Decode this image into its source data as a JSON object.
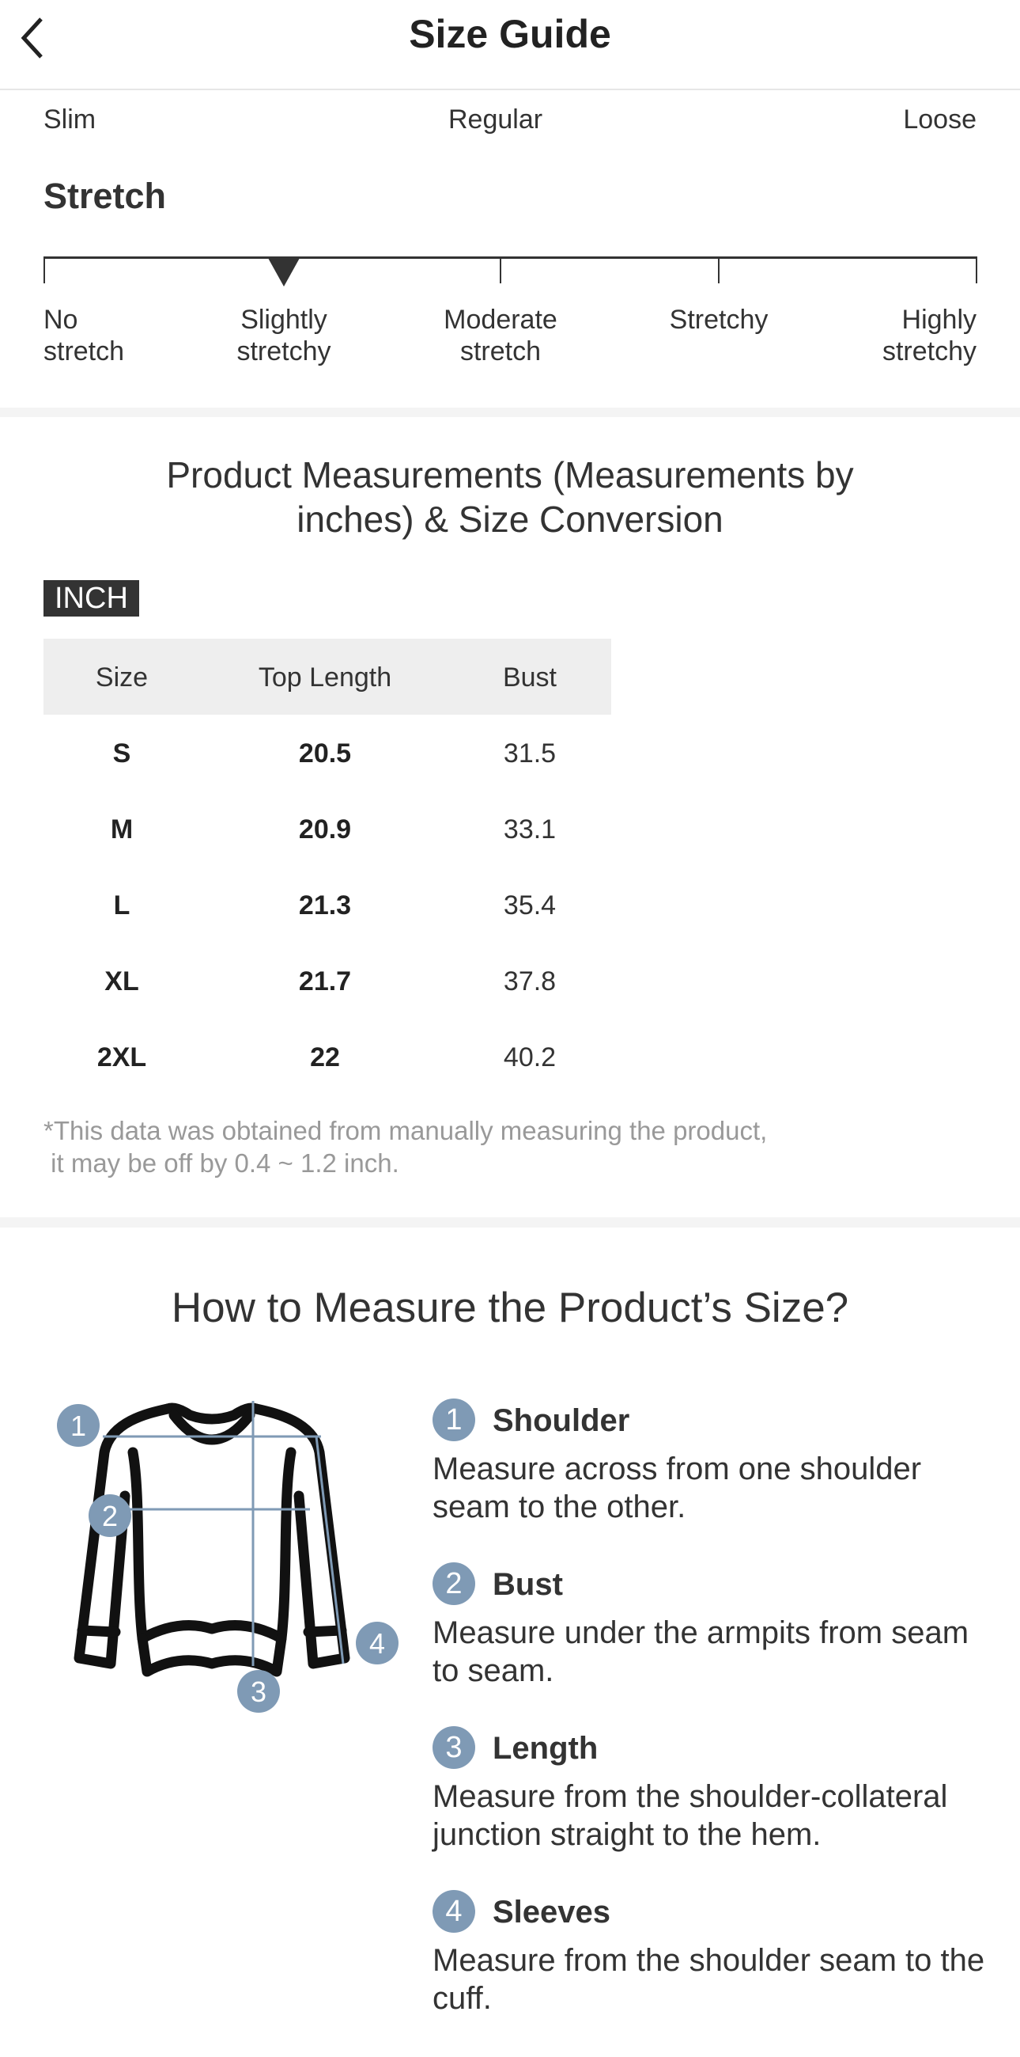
{
  "header": {
    "title": "Size Guide",
    "back_icon": "chevron-left-icon"
  },
  "fit": {
    "labels": [
      "Slim",
      "Regular",
      "Loose"
    ]
  },
  "stretch": {
    "title": "Stretch",
    "levels": [
      {
        "line1": "No",
        "line2": "stretch"
      },
      {
        "line1": "Slightly",
        "line2": "stretchy"
      },
      {
        "line1": "Moderate",
        "line2": "stretch"
      },
      {
        "line1": "Stretchy",
        "line2": ""
      },
      {
        "line1": "Highly",
        "line2": "stretchy"
      }
    ],
    "selected_index": 1
  },
  "measurements": {
    "title_line1": "Product Measurements (Measurements by",
    "title_line2": "inches) & Size Conversion",
    "unit_badge": "INCH",
    "columns": [
      "Size",
      "Top Length",
      "Bust"
    ],
    "rows": [
      [
        "S",
        "20.5",
        "31.5"
      ],
      [
        "M",
        "20.9",
        "33.1"
      ],
      [
        "L",
        "21.3",
        "35.4"
      ],
      [
        "XL",
        "21.7",
        "37.8"
      ],
      [
        "2XL",
        "22",
        "40.2"
      ]
    ],
    "note": "*This data was obtained from manually measuring the product,\n it may be off by 0.4 ~ 1.2 inch."
  },
  "how_to": {
    "title": "How to Measure the Product’s Size?",
    "accent_color": "#7f9ab5",
    "items": [
      {
        "num": "1",
        "title": "Shoulder",
        "desc": "Measure across from one shoulder seam to the other."
      },
      {
        "num": "2",
        "title": "Bust",
        "desc": "Measure under the armpits from seam to seam."
      },
      {
        "num": "3",
        "title": "Length",
        "desc": "Measure from the shoulder-collateral junction straight to the hem."
      },
      {
        "num": "4",
        "title": "Sleeves",
        "desc": "Measure from the shoulder seam to the cuff."
      }
    ]
  }
}
